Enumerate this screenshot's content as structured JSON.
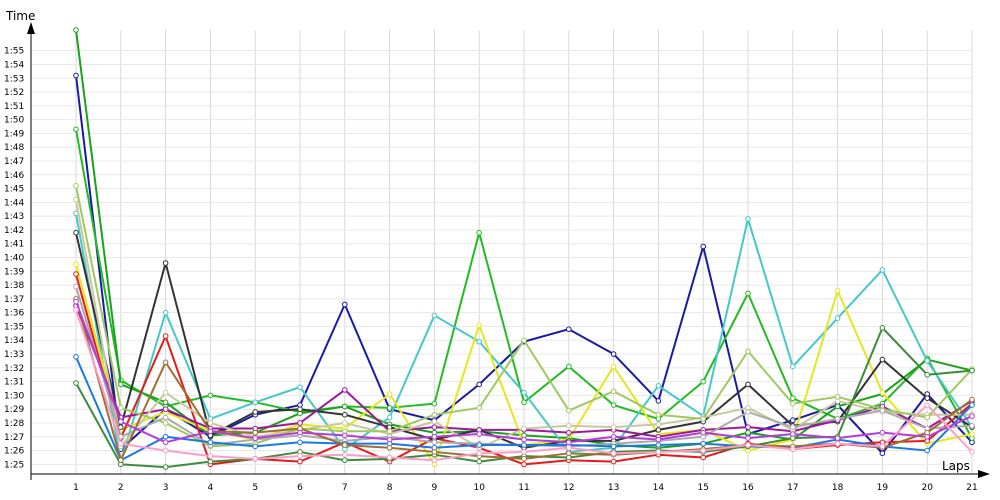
{
  "chart_data": {
    "type": "line",
    "xlabel": "Laps",
    "ylabel": "Time",
    "x": [
      1,
      2,
      3,
      4,
      5,
      6,
      7,
      8,
      9,
      10,
      11,
      12,
      13,
      14,
      15,
      16,
      17,
      18,
      19,
      20,
      21
    ],
    "ylim": [
      84.3,
      116.5
    ],
    "y_ticks": [
      "1:25",
      "1:26",
      "1:27",
      "1:28",
      "1:29",
      "1:30",
      "1:31",
      "1:32",
      "1:33",
      "1:34",
      "1:35",
      "1:36",
      "1:37",
      "1:38",
      "1:39",
      "1:40",
      "1:41",
      "1:42",
      "1:43",
      "1:44",
      "1:45",
      "1:46",
      "1:47",
      "1:48",
      "1:49",
      "1:50",
      "1:51",
      "1:52",
      "1:53",
      "1:54",
      "1:55"
    ],
    "y_tick_values": [
      85,
      86,
      87,
      88,
      89,
      90,
      91,
      92,
      93,
      94,
      95,
      96,
      97,
      98,
      99,
      100,
      101,
      102,
      103,
      104,
      105,
      106,
      107,
      108,
      109,
      110,
      111,
      112,
      113,
      114,
      115
    ],
    "grid": true,
    "series": [
      {
        "color": "#1a1aa6",
        "values": [
          113.2,
          86.1,
          89.0,
          87.0,
          88.6,
          89.3,
          96.6,
          89.0,
          88.2,
          90.8,
          93.9,
          94.8,
          93.0,
          89.6,
          100.8,
          87.2,
          88.2,
          89.3,
          85.8,
          90.1,
          86.6
        ]
      },
      {
        "color": "#22bb22",
        "values": [
          109.3,
          91.1,
          89.2,
          90.0,
          89.5,
          88.8,
          89.2,
          89.1,
          89.4,
          101.8,
          89.5,
          92.1,
          89.3,
          88.3,
          91.0,
          97.4,
          89.8,
          88.3,
          89.4,
          92.7,
          86.9
        ]
      },
      {
        "color": "#1aa31a",
        "values": [
          116.5,
          90.8,
          89.5,
          87.1,
          87.3,
          88.7,
          89.2,
          87.9,
          87.3,
          87.4,
          87.1,
          86.9,
          86.4,
          86.2,
          86.5,
          87.3,
          86.8,
          89.2,
          90.1,
          92.6,
          91.8
        ]
      },
      {
        "color": "#46c8c8",
        "values": [
          103.2,
          85.2,
          96.0,
          88.3,
          89.5,
          90.6,
          86.1,
          88.4,
          95.8,
          93.9,
          90.2,
          85.9,
          86.2,
          90.7,
          88.5,
          102.8,
          92.1,
          95.6,
          99.1,
          92.5,
          87.7
        ]
      },
      {
        "color": "#e6e61a",
        "values": [
          99.5,
          87.5,
          88.8,
          87.4,
          86.8,
          87.9,
          87.6,
          90.1,
          85.0,
          95.1,
          86.4,
          86.8,
          92.1,
          87.2,
          87.5,
          86.0,
          86.8,
          97.6,
          90.2,
          86.5,
          87.2
        ]
      },
      {
        "color": "#e61a1a",
        "values": [
          98.8,
          86.9,
          94.3,
          85.0,
          85.4,
          85.2,
          86.6,
          85.2,
          86.9,
          86.2,
          85.0,
          85.3,
          85.2,
          85.7,
          85.5,
          86.5,
          86.1,
          86.4,
          86.6,
          86.7,
          89.4
        ]
      },
      {
        "color": "#333333",
        "values": [
          101.8,
          87.7,
          99.6,
          87.1,
          88.8,
          89.0,
          88.6,
          87.7,
          86.8,
          87.5,
          86.2,
          86.7,
          86.7,
          87.5,
          88.1,
          90.8,
          87.8,
          88.1,
          92.6,
          89.8,
          87.7
        ]
      },
      {
        "color": "#9c1a9c",
        "values": [
          96.5,
          88.4,
          89.0,
          87.6,
          87.6,
          88.0,
          90.4,
          87.4,
          87.7,
          87.5,
          87.5,
          87.3,
          87.5,
          87.0,
          87.5,
          87.7,
          87.4,
          88.2,
          89.2,
          87.6,
          89.6
        ]
      },
      {
        "color": "#c8c8a0",
        "values": [
          104.2,
          86.3,
          90.2,
          88.0,
          87.0,
          87.5,
          88.0,
          87.2,
          88.1,
          86.2,
          87.6,
          87.8,
          87.7,
          87.9,
          88.4,
          89.1,
          87.5,
          89.6,
          88.8,
          88.6,
          88.6
        ]
      },
      {
        "color": "#a0c860",
        "values": [
          105.2,
          89.1,
          88.0,
          86.3,
          86.5,
          87.6,
          87.4,
          87.4,
          88.6,
          89.1,
          94.0,
          88.9,
          90.3,
          88.6,
          88.3,
          93.2,
          89.4,
          89.9,
          89.0,
          88.4,
          91.9
        ]
      },
      {
        "color": "#aaaaaa",
        "values": [
          97.9,
          87.0,
          88.4,
          86.4,
          86.8,
          87.1,
          86.7,
          87.0,
          86.6,
          86.5,
          86.4,
          86.3,
          86.5,
          86.7,
          87.0,
          88.8,
          87.7,
          88.3,
          88.9,
          87.6,
          87.8
        ]
      },
      {
        "color": "#1a78e6",
        "values": [
          92.8,
          85.3,
          87.0,
          86.6,
          86.3,
          86.6,
          86.5,
          86.5,
          86.2,
          86.4,
          86.4,
          86.4,
          86.3,
          86.4,
          86.5,
          86.3,
          86.2,
          86.8,
          86.3,
          86.0,
          89.3
        ]
      },
      {
        "color": "#3c8c3c",
        "values": [
          90.9,
          85.0,
          84.8,
          85.2,
          85.4,
          85.9,
          85.3,
          85.4,
          85.7,
          85.2,
          85.6,
          85.5,
          85.9,
          86.0,
          85.9,
          86.3,
          86.9,
          87.0,
          94.9,
          91.5,
          91.8
        ]
      },
      {
        "color": "#a06e32",
        "values": [
          97.0,
          85.3,
          92.4,
          87.4,
          87.3,
          87.6,
          86.4,
          86.2,
          85.9,
          85.6,
          85.4,
          85.8,
          85.7,
          85.9,
          86.1,
          86.4,
          86.3,
          86.5,
          86.2,
          87.3,
          89.7
        ]
      },
      {
        "color": "#b43cdc",
        "values": [
          96.8,
          88.1,
          86.6,
          87.4,
          86.9,
          87.3,
          87.1,
          86.8,
          87.0,
          87.2,
          86.8,
          86.6,
          87.0,
          86.8,
          87.3,
          86.9,
          87.2,
          86.9,
          87.3,
          87.0,
          88.5
        ]
      },
      {
        "color": "#ff9bc8",
        "values": [
          96.2,
          86.5,
          86.0,
          85.6,
          85.4,
          85.6,
          85.7,
          85.5,
          85.3,
          85.8,
          85.9,
          86.2,
          85.8,
          85.9,
          86.0,
          86.4,
          86.1,
          86.5,
          86.3,
          89.3,
          85.9
        ]
      }
    ]
  }
}
